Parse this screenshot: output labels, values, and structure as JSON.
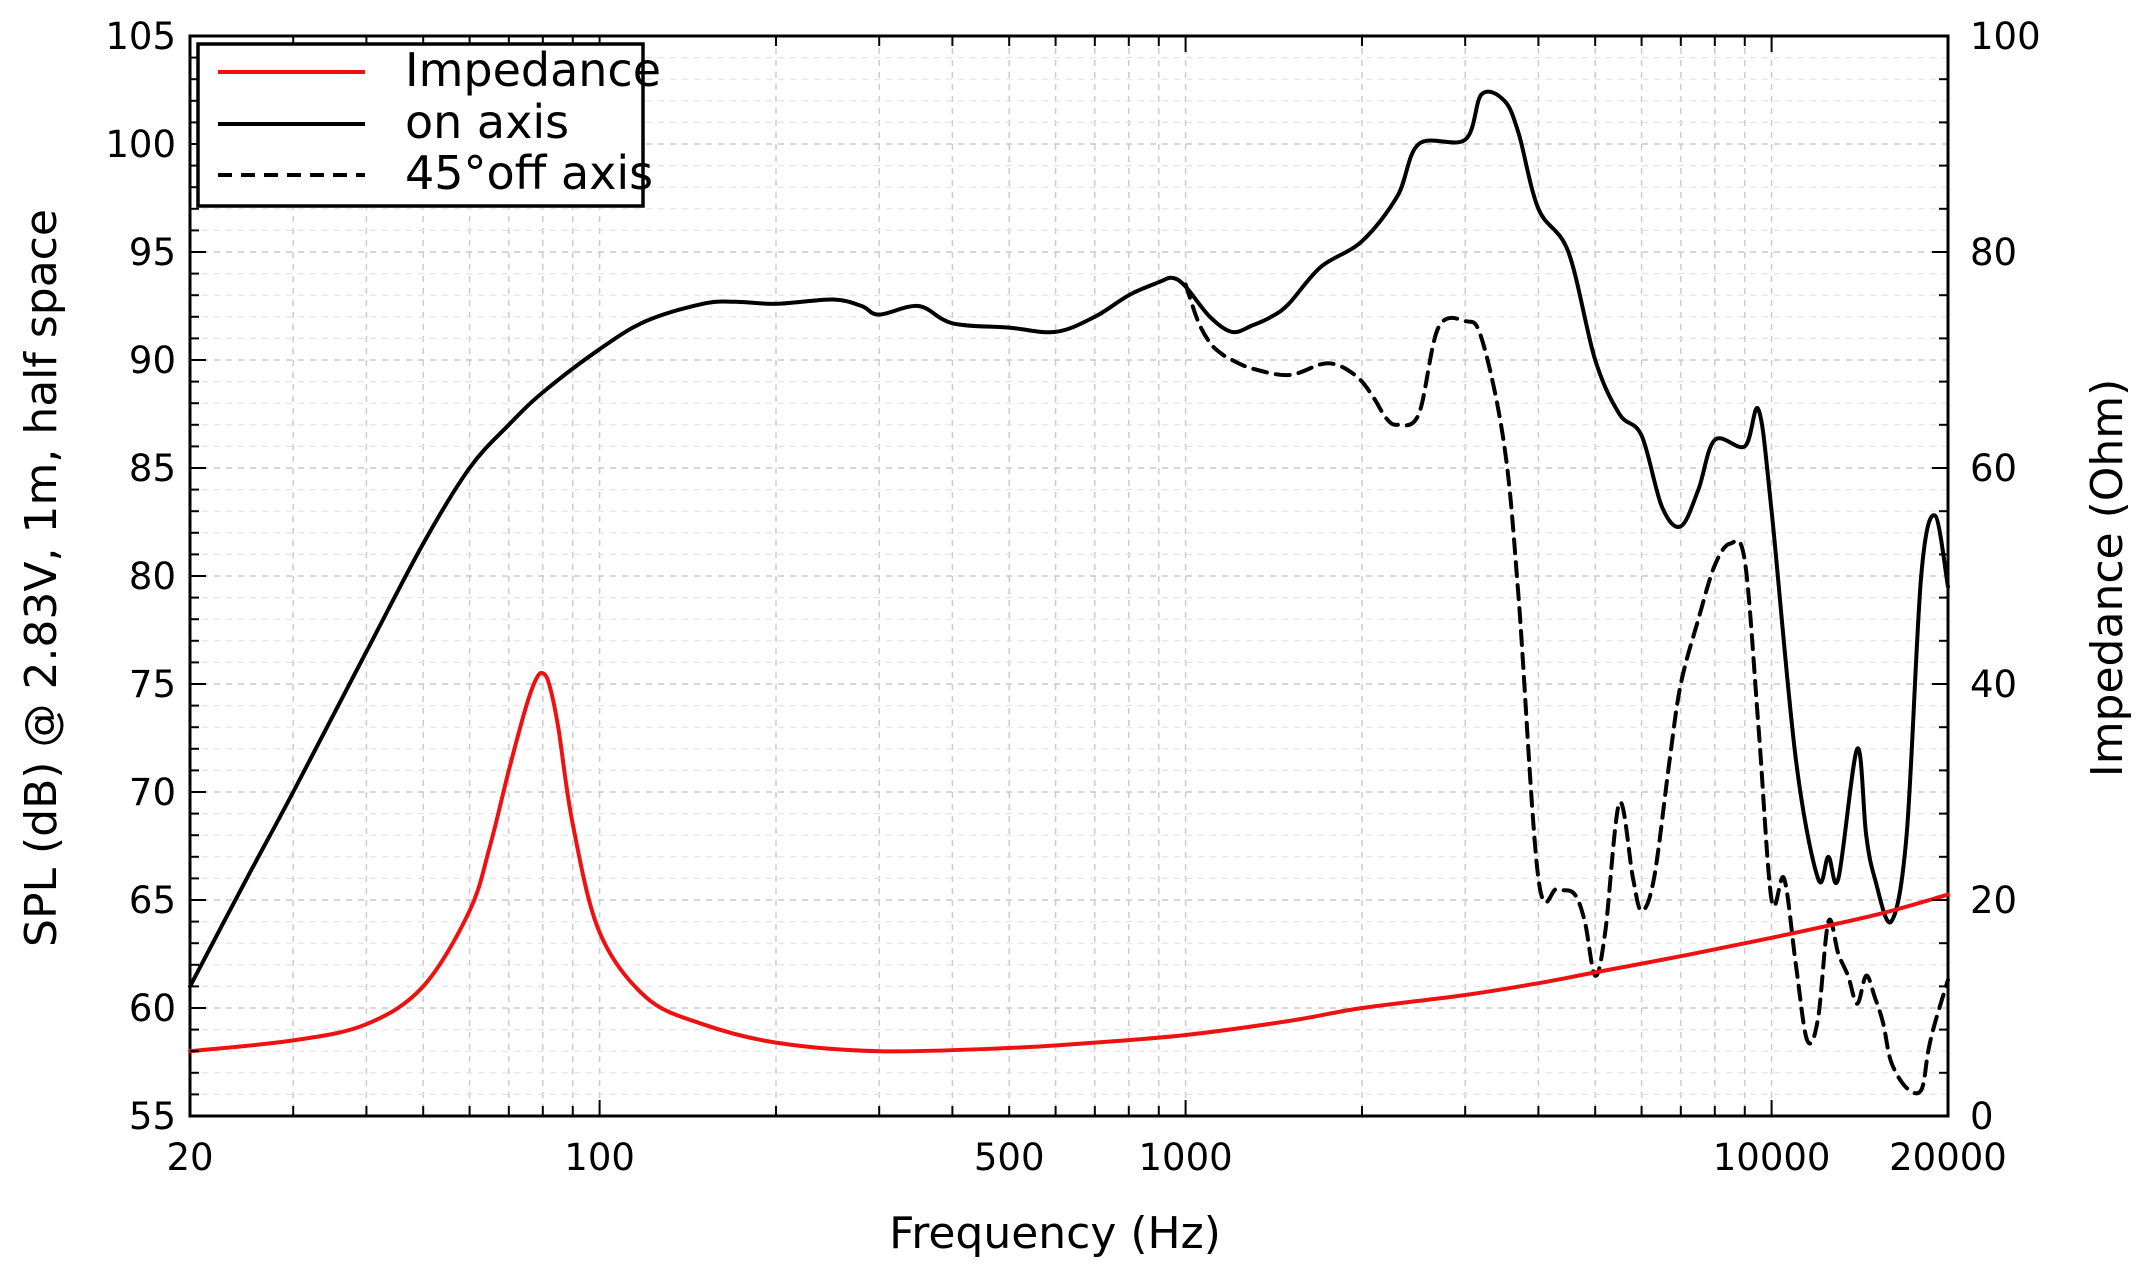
{
  "chart_data": {
    "type": "line",
    "xlabel": "Frequency (Hz)",
    "ylabel": "SPL (dB) @ 2.83V, 1m, half space",
    "y2label": "Impedance (Ohm)",
    "xscale": "log",
    "xlim": [
      20,
      20000
    ],
    "ylim": [
      55,
      105
    ],
    "y2lim": [
      0,
      100
    ],
    "grid": true,
    "legend_position": "top-left",
    "x_ticks": [
      20,
      100,
      500,
      1000,
      10000,
      20000
    ],
    "x_tick_labels": [
      "20",
      "100",
      "500",
      "1000",
      "10000",
      "20000"
    ],
    "y_ticks": [
      55,
      60,
      65,
      70,
      75,
      80,
      85,
      90,
      95,
      100,
      105
    ],
    "y_tick_labels": [
      "55",
      "60",
      "65",
      "70",
      "75",
      "80",
      "85",
      "90",
      "95",
      "100",
      "105"
    ],
    "y2_ticks": [
      0,
      20,
      40,
      60,
      80,
      100
    ],
    "y2_tick_labels": [
      "0",
      "20",
      "40",
      "60",
      "80",
      "100"
    ],
    "series": [
      {
        "name": "Impedance",
        "axis": "right",
        "color": "#ee1111",
        "dash": "solid",
        "x": [
          20,
          30,
          40,
          50,
          60,
          65,
          70,
          75,
          78,
          80,
          82,
          85,
          90,
          100,
          120,
          150,
          200,
          300,
          500,
          700,
          1000,
          1500,
          2000,
          3000,
          4000,
          5000,
          7000,
          10000,
          15000,
          20000
        ],
        "y": [
          6,
          7,
          8.5,
          12,
          19,
          25,
          32,
          38,
          40.5,
          41,
          40,
          36,
          27,
          17,
          11,
          8.5,
          6.8,
          6,
          6.3,
          6.8,
          7.5,
          8.8,
          10,
          11.2,
          12.3,
          13.3,
          14.8,
          16.5,
          18.6,
          20.5
        ]
      },
      {
        "name": "on axis",
        "axis": "left",
        "color": "#000000",
        "dash": "solid",
        "x": [
          20,
          25,
          30,
          40,
          50,
          60,
          70,
          80,
          100,
          120,
          150,
          170,
          200,
          250,
          280,
          300,
          350,
          400,
          500,
          600,
          700,
          800,
          900,
          950,
          1000,
          1100,
          1200,
          1300,
          1400,
          1500,
          1700,
          2000,
          2300,
          2500,
          3000,
          3200,
          3500,
          3700,
          4000,
          4500,
          5000,
          5500,
          6000,
          6500,
          7000,
          7500,
          8000,
          9000,
          9500,
          10000,
          11000,
          12000,
          12500,
          13000,
          14000,
          14500,
          15000,
          16000,
          17000,
          18000,
          19000,
          20000
        ],
        "y": [
          61,
          66,
          70,
          76.5,
          81.5,
          85,
          87,
          88.5,
          90.5,
          91.8,
          92.6,
          92.7,
          92.6,
          92.8,
          92.5,
          92.1,
          92.5,
          91.7,
          91.5,
          91.3,
          92,
          93,
          93.6,
          93.8,
          93.4,
          92,
          91.3,
          91.6,
          92,
          92.6,
          94.3,
          95.5,
          97.6,
          100,
          100.2,
          102.3,
          102,
          100.5,
          97,
          95,
          90,
          87.5,
          86.5,
          83.2,
          82.3,
          84,
          86.3,
          86,
          87.7,
          83,
          71.5,
          66,
          67,
          66,
          72,
          68,
          66,
          64,
          68,
          80,
          82.8,
          79.5
        ]
      },
      {
        "name": "45°off axis",
        "axis": "left",
        "color": "#000000",
        "dash": "dashed",
        "x": [
          1000,
          1050,
          1100,
          1150,
          1200,
          1300,
          1500,
          1700,
          1800,
          1900,
          2000,
          2100,
          2200,
          2300,
          2500,
          2700,
          3000,
          3200,
          3500,
          3700,
          4000,
          4300,
          4600,
          4800,
          5000,
          5200,
          5500,
          5800,
          6000,
          6300,
          6700,
          7000,
          7500,
          8000,
          8500,
          9000,
          9500,
          10000,
          10500,
          11000,
          11500,
          12000,
          12500,
          13000,
          13500,
          14000,
          14500,
          15000,
          15500,
          16000,
          17000,
          18000,
          18500,
          19000,
          20000
        ],
        "y": [
          93.5,
          91.8,
          90.8,
          90.3,
          90,
          89.6,
          89.3,
          89.8,
          89.8,
          89.5,
          89,
          88.2,
          87.3,
          87,
          87.5,
          91.5,
          91.8,
          91,
          86,
          79,
          66,
          65.5,
          65.3,
          64,
          61.5,
          63.5,
          69.5,
          66,
          64.5,
          66,
          71.5,
          75,
          78,
          80.5,
          81.5,
          80.7,
          73,
          65,
          66,
          62,
          58.5,
          59.5,
          64,
          62.5,
          61.5,
          60.2,
          61.5,
          60.5,
          59.3,
          57.5,
          56.3,
          56.2,
          58,
          59.3,
          61.3
        ]
      }
    ]
  }
}
